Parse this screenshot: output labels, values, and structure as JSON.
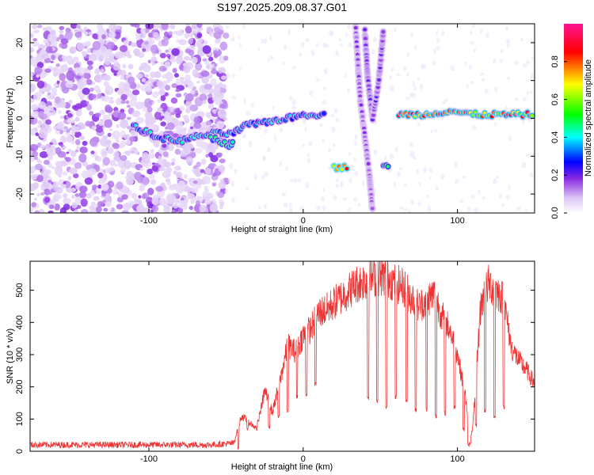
{
  "title": "S197.2025.209.08.37.G01",
  "chart_data": [
    {
      "type": "heatmap",
      "xlabel": "Height of straight line (km)",
      "ylabel": "Frequency (Hz)",
      "xlim": [
        -177,
        150
      ],
      "ylim": [
        -25,
        25
      ],
      "xticks": [
        -100,
        0,
        100
      ],
      "yticks": [
        -20,
        -10,
        0,
        10,
        20
      ],
      "colorbar": {
        "label": "Normalized spectral amplitude",
        "range": [
          0,
          1
        ],
        "ticks": [
          0.0,
          0.2,
          0.4,
          0.6,
          0.8
        ]
      },
      "colorscale": [
        "#ffffff",
        "#dcc6f5",
        "#8a2be2",
        "#0000ff",
        "#00ffff",
        "#00ff00",
        "#ffff00",
        "#ff0000",
        "#ff1493"
      ],
      "features": [
        {
          "kind": "noise",
          "x_range": [
            -177,
            -50
          ],
          "freq_range": [
            -25,
            25
          ],
          "amplitude": 0.15
        },
        {
          "kind": "ridge",
          "points": [
            [
              -110,
              -2
            ],
            [
              -95,
              -5
            ],
            [
              -80,
              -6
            ],
            [
              -60,
              -4
            ],
            [
              -45,
              -4
            ],
            [
              -38,
              -2
            ],
            [
              -25,
              -1
            ],
            [
              -10,
              0
            ],
            [
              0,
              1
            ],
            [
              15,
              1
            ]
          ],
          "amplitude": 0.5
        },
        {
          "kind": "ridge",
          "points": [
            [
              -60,
              -5
            ],
            [
              -48,
              -7
            ],
            [
              -45,
              -6
            ]
          ],
          "amplitude": 0.55
        },
        {
          "kind": "ridge",
          "points": [
            [
              20,
              -13
            ],
            [
              30,
              -13
            ]
          ],
          "amplitude": 0.9
        },
        {
          "kind": "ridge",
          "points": [
            [
              52,
              -13
            ],
            [
              56,
              -12
            ]
          ],
          "amplitude": 0.6
        },
        {
          "kind": "ridge",
          "points": [
            [
              62,
              1
            ],
            [
              80,
              1
            ],
            [
              95,
              2
            ],
            [
              110,
              1
            ],
            [
              150,
              1
            ]
          ],
          "amplitude": 0.85
        },
        {
          "kind": "ridge",
          "points": [
            [
              34,
              24
            ],
            [
              37,
              5
            ],
            [
              40,
              -5
            ],
            [
              43,
              -15
            ],
            [
              45,
              -25
            ]
          ],
          "amplitude": 0.25
        },
        {
          "kind": "ridge",
          "points": [
            [
              40,
              23
            ],
            [
              42,
              10
            ],
            [
              45,
              0
            ],
            [
              49,
              10
            ],
            [
              52,
              23
            ]
          ],
          "amplitude": 0.3
        }
      ]
    },
    {
      "type": "line",
      "xlabel": "Height of straight line (km)",
      "ylabel": "SNR (10 * v/v)",
      "xlim": [
        -177,
        150
      ],
      "ylim": [
        0,
        590
      ],
      "xticks": [
        -100,
        0,
        100
      ],
      "yticks": [
        0,
        100,
        200,
        300,
        400,
        500
      ],
      "color": "#ee3333",
      "series": [
        {
          "x": [
            -177,
            -160,
            -140,
            -120,
            -100,
            -80,
            -60,
            -45,
            -40,
            -35,
            -30,
            -25,
            -20,
            -15,
            -10,
            -5,
            0,
            5,
            10,
            15,
            20,
            25,
            30,
            35,
            40,
            45,
            50,
            55,
            60,
            65,
            70,
            75,
            80,
            85,
            90,
            95,
            100,
            105,
            108,
            110,
            115,
            120,
            125,
            130,
            135,
            140,
            145,
            150
          ],
          "values": [
            20,
            20,
            20,
            20,
            20,
            20,
            20,
            25,
            110,
            90,
            70,
            190,
            120,
            220,
            330,
            310,
            360,
            380,
            430,
            440,
            460,
            480,
            500,
            520,
            530,
            540,
            545,
            540,
            520,
            510,
            480,
            450,
            470,
            490,
            420,
            380,
            300,
            180,
            20,
            80,
            450,
            520,
            500,
            470,
            320,
            280,
            250,
            210
          ],
          "dips": [
            [
              -42,
              5
            ],
            [
              -36,
              60
            ],
            [
              -29,
              90
            ],
            [
              -22,
              70
            ],
            [
              -16,
              100
            ],
            [
              -10,
              120
            ],
            [
              -4,
              160
            ],
            [
              2,
              170
            ],
            [
              8,
              200
            ],
            [
              42,
              160
            ],
            [
              48,
              150
            ],
            [
              54,
              130
            ],
            [
              60,
              160
            ],
            [
              67,
              150
            ],
            [
              73,
              120
            ],
            [
              80,
              120
            ],
            [
              86,
              100
            ],
            [
              92,
              110
            ],
            [
              98,
              130
            ],
            [
              104,
              60
            ],
            [
              107,
              10
            ],
            [
              112,
              70
            ],
            [
              118,
              120
            ],
            [
              124,
              100
            ],
            [
              130,
              130
            ]
          ]
        }
      ]
    }
  ]
}
